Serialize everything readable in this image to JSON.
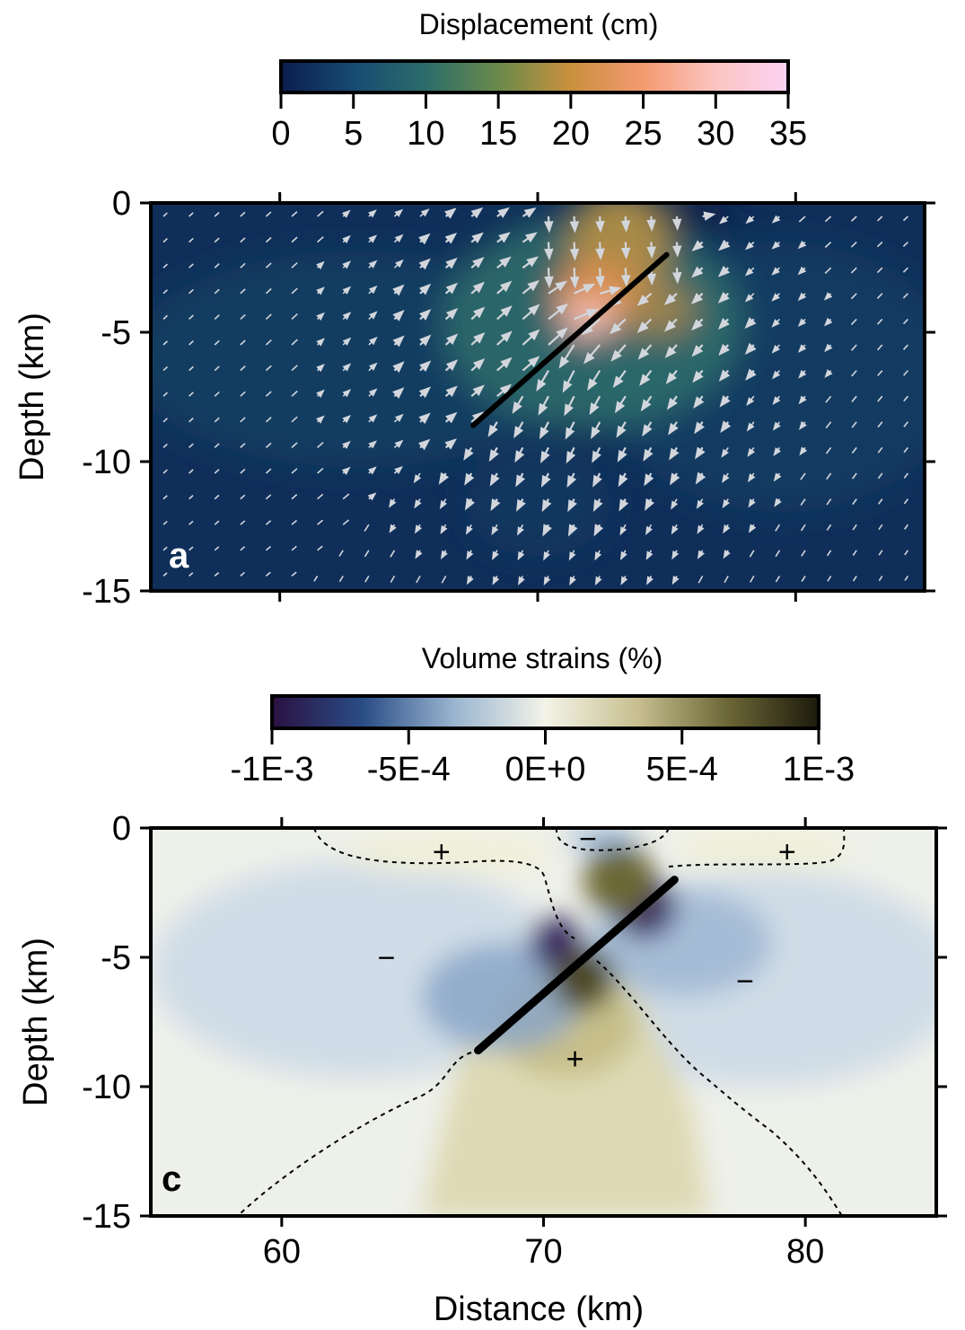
{
  "chart_data": [
    {
      "type": "heatmap",
      "panel_label": "a",
      "colorbar": {
        "title": "Displacement (cm)",
        "ticks": [
          "0",
          "5",
          "10",
          "15",
          "20",
          "25",
          "30",
          "35"
        ],
        "range": [
          0,
          35
        ],
        "colors": [
          "#0b1d4e",
          "#174a72",
          "#2b6d6b",
          "#6a8a4a",
          "#c9903e",
          "#f49a70",
          "#fbc5c2",
          "#fcd2f3"
        ]
      },
      "xlim": [
        55,
        85
      ],
      "ylim": [
        -15,
        0
      ],
      "ylabel": "Depth (km)",
      "yticks": [
        "0",
        "-5",
        "-10",
        "-15"
      ],
      "xticks": [
        60,
        70,
        80
      ],
      "fault": {
        "x": [
          67.5,
          75.0
        ],
        "y": [
          -8.6,
          -2.0
        ]
      },
      "field_colors": {
        "background": "#0f2e59",
        "peak": "#f6c0b6"
      },
      "arrow_color": "#d2d6dc"
    },
    {
      "type": "heatmap",
      "panel_label": "c",
      "colorbar": {
        "title": "Volume strains (%)",
        "ticks": [
          "-1E-3",
          "-5E-4",
          "0E+0",
          "5E-4",
          "1E-3"
        ],
        "range": [
          -0.001,
          0.001
        ],
        "colors": [
          "#2b1142",
          "#2a4d86",
          "#9ab5d0",
          "#f3f3e8",
          "#c8c090",
          "#6c6736",
          "#1c1a0c"
        ]
      },
      "xlim": [
        55,
        85
      ],
      "ylim": [
        -15,
        0
      ],
      "xlabel": "Distance (km)",
      "ylabel": "Depth (km)",
      "xticks": [
        "60",
        "70",
        "80"
      ],
      "yticks": [
        "0",
        "-5",
        "-10",
        "-15"
      ],
      "fault": {
        "x": [
          67.5,
          75.0
        ],
        "y": [
          -8.6,
          -2.0
        ]
      },
      "signs": [
        {
          "text": "+",
          "x": 66.1,
          "y": -0.9
        },
        {
          "text": "−",
          "x": 71.7,
          "y": -0.4
        },
        {
          "text": "+",
          "x": 79.3,
          "y": -0.9
        },
        {
          "text": "−",
          "x": 64.0,
          "y": -5.0
        },
        {
          "text": "−",
          "x": 77.7,
          "y": -5.9
        },
        {
          "text": "+",
          "x": 71.2,
          "y": -8.9
        }
      ]
    }
  ]
}
